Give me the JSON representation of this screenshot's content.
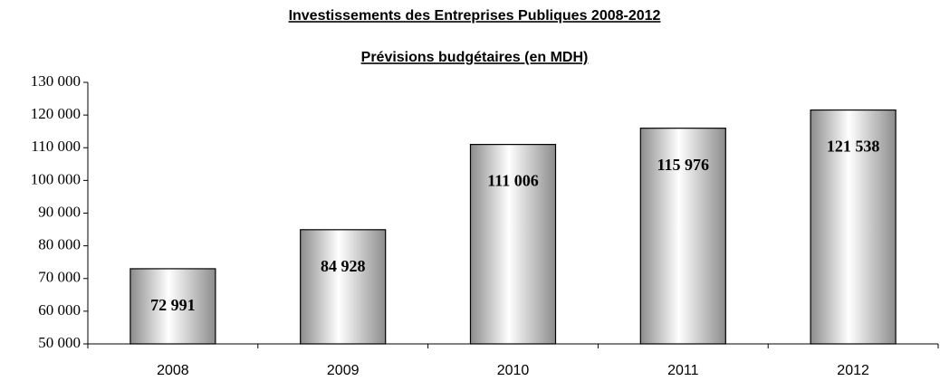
{
  "chart_data": {
    "type": "bar",
    "title": "Investissements des Entreprises Publiques 2008-2012",
    "subtitle": "Prévisions budgétaires (en MDH)",
    "categories": [
      "2008",
      "2009",
      "2010",
      "2011",
      "2012"
    ],
    "values": [
      72991,
      84928,
      111006,
      115976,
      121538
    ],
    "value_labels": [
      "72 991",
      "84 928",
      "111 006",
      "115 976",
      "121 538"
    ],
    "color": "#a6a6a6",
    "ylim": [
      50000,
      130000
    ],
    "yticks": [
      {
        "value": 50000,
        "label": "50 000"
      },
      {
        "value": 60000,
        "label": "60 000"
      },
      {
        "value": 70000,
        "label": "70 000"
      },
      {
        "value": 80000,
        "label": "80 000"
      },
      {
        "value": 90000,
        "label": "90 000"
      },
      {
        "value": 100000,
        "label": "100 000"
      },
      {
        "value": 110000,
        "label": "110 000"
      },
      {
        "value": 120000,
        "label": "120 000"
      },
      {
        "value": 130000,
        "label": "130 000"
      }
    ],
    "grid": false
  }
}
